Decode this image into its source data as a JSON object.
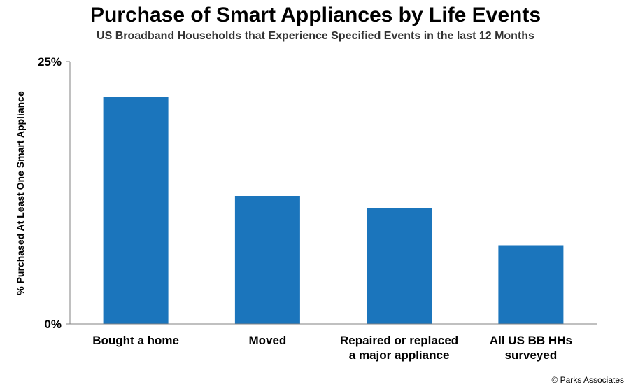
{
  "chart_data": {
    "type": "bar",
    "title": "Purchase of Smart Appliances by Life Events",
    "subtitle": "US Broadband Households that Experience Specified Events in the last 12 Months",
    "xlabel": "",
    "ylabel": "% Purchased At Least One Smart Appliance",
    "categories": [
      [
        "Bought a home"
      ],
      [
        "Moved"
      ],
      [
        "Repaired or replaced",
        "a major appliance"
      ],
      [
        "All US BB HHs",
        "surveyed"
      ]
    ],
    "values": [
      21.6,
      12.2,
      11.0,
      7.5
    ],
    "ylim": [
      0,
      25
    ],
    "y_tick_labels": [
      "0%",
      "25%"
    ],
    "y_tick_values": [
      0,
      25
    ],
    "grid": false,
    "bar_color": "#1b75bc",
    "axis_color": "#808080"
  },
  "footer": {
    "copyright": "© Parks Associates"
  }
}
